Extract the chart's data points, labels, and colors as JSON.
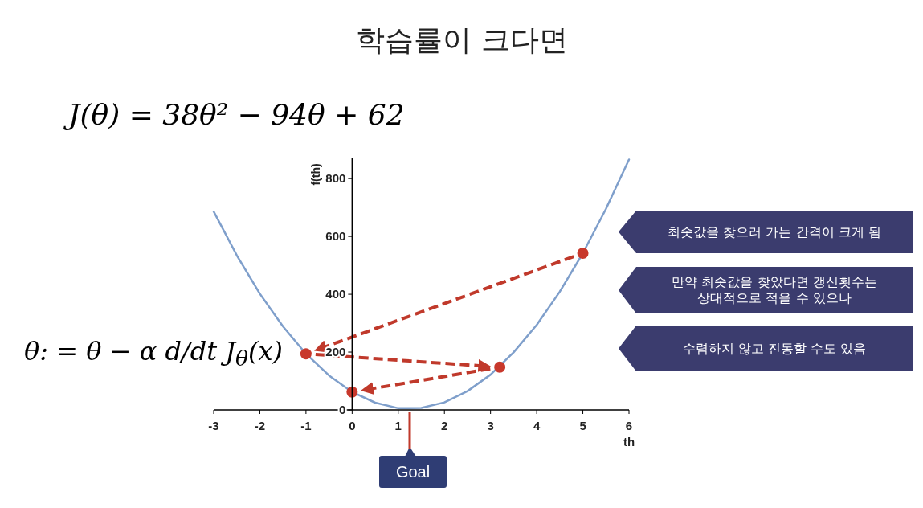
{
  "chart_data": {
    "type": "line",
    "title": "학습률이 크다면",
    "xlabel": "th",
    "ylabel": "f(th)",
    "xlim": [
      -3,
      6
    ],
    "ylim": [
      0,
      870
    ],
    "xticks": [
      -3,
      -2,
      -1,
      0,
      1,
      2,
      3,
      4,
      5,
      6
    ],
    "yticks": [
      0,
      200,
      400,
      600,
      800
    ],
    "series": [
      {
        "color": "#7f9fcb",
        "x": [
          -3,
          -2.5,
          -2,
          -1.5,
          -1,
          -0.5,
          0,
          0.5,
          1,
          1.5,
          2,
          2.5,
          3,
          3.5,
          4,
          4.5,
          5,
          5.5,
          6
        ],
        "values": [
          686,
          535,
          402,
          289,
          194,
          119,
          62,
          25,
          6,
          7,
          26,
          65,
          122,
          199,
          294,
          409,
          542,
          695,
          866
        ]
      },
      {
        "type": "scatter",
        "color": "#c8382c",
        "x": [
          -1,
          0,
          3.2,
          5
        ],
        "values": [
          194,
          62,
          148,
          542
        ]
      }
    ],
    "annotations": [
      "J(θ) = 38θ² − 94θ + 62",
      "θ: = θ − α d/dt J$_{θ}$(x)",
      "최솟값을 찾으러 가는 간격이 크게 됨",
      "만약 최솟값을 찾았다면 갱신횟수는 상대적으로 적을 수 있으나",
      "수렴하지 않고 진동할 수도 있음",
      "Goal"
    ]
  }
}
